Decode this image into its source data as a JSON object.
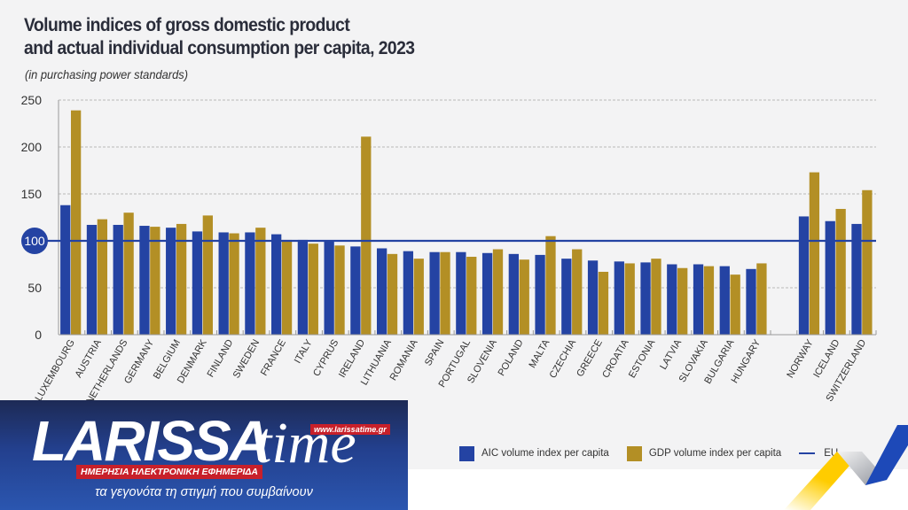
{
  "title": "Volume indices of gross domestic product\nand actual individual consumption per capita, 2023",
  "subtitle": "(in purchasing power standards)",
  "chart_data": {
    "type": "bar",
    "title": "Volume indices of gross domestic product and actual individual consumption per capita, 2023",
    "subtitle": "(in purchasing power standards)",
    "xlabel": "",
    "ylabel": "",
    "ylim": [
      0,
      250
    ],
    "yticks": [
      0,
      50,
      100,
      150,
      200,
      250
    ],
    "highlighted_tick": 100,
    "grid": true,
    "legend_position": "bottom-right",
    "categories": [
      "LUXEMBOURG",
      "AUSTRIA",
      "NETHERLANDS",
      "GERMANY",
      "BELGIUM",
      "DENMARK",
      "FINLAND",
      "SWEDEN",
      "FRANCE",
      "ITALY",
      "CYPRUS",
      "IRELAND",
      "LITHUANIA",
      "ROMANIA",
      "SPAIN",
      "PORTUGAL",
      "SLOVENIA",
      "POLAND",
      "MALTA",
      "CZECHIA",
      "GREECE",
      "CROATIA",
      "ESTONIA",
      "LATVIA",
      "SLOVAKIA",
      "BULGARIA",
      "HUNGARY",
      "",
      "NORWAY",
      "ICELAND",
      "SWITZERLAND"
    ],
    "series": [
      {
        "name": "AIC volume index per capita",
        "color": "#2443a3",
        "values": [
          138,
          117,
          117,
          116,
          114,
          110,
          109,
          109,
          107,
          101,
          100,
          94,
          92,
          89,
          88,
          88,
          87,
          86,
          85,
          81,
          79,
          78,
          77,
          75,
          75,
          73,
          70,
          null,
          126,
          121,
          118
        ]
      },
      {
        "name": "GDP volume index per capita",
        "color": "#b38f25",
        "values": [
          239,
          123,
          130,
          115,
          118,
          127,
          108,
          114,
          101,
          97,
          95,
          211,
          86,
          81,
          88,
          83,
          91,
          80,
          105,
          91,
          67,
          76,
          81,
          71,
          73,
          64,
          76,
          null,
          173,
          134,
          154
        ]
      }
    ],
    "reference_line": {
      "name": "EU",
      "value": 100,
      "color": "#2443a3"
    }
  },
  "legend": {
    "items": [
      {
        "label": "AIC volume index per capita",
        "color": "#2443a3",
        "kind": "box"
      },
      {
        "label": "GDP volume index per capita",
        "color": "#b38f25",
        "kind": "box"
      },
      {
        "label": "EU",
        "color": "#2443a3",
        "kind": "line"
      }
    ]
  },
  "logo": {
    "name": "ARISSA",
    "name_initial": "L",
    "time": "time",
    "url": "www.larissatime.gr",
    "tagline": "ΗΜΕΡΗΣΙΑ ΗΛΕΚΤΡΟΝΙΚΗ ΕΦΗΜΕΡΙΔΑ",
    "slogan": "τα γεγονότα τη στιγμή που συμβαίνουν"
  }
}
